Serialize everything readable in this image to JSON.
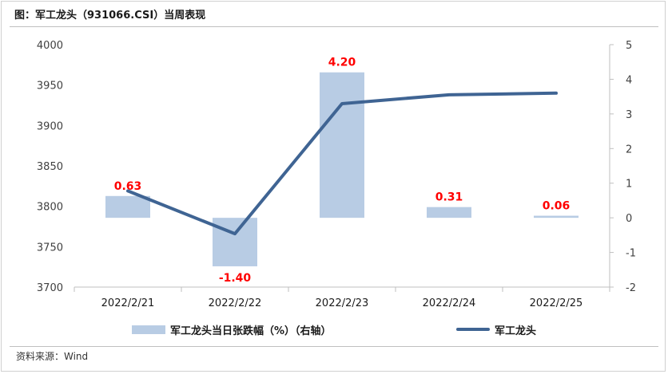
{
  "title": "图：军工龙头（931066.CSI）当周表现",
  "source": "资料来源：Wind",
  "colors": {
    "bar": "#b8cce4",
    "line": "#3f6493",
    "bar_label": "#ff0000",
    "axis_text": "#404040",
    "axis_line": "#bfbfbf"
  },
  "chart_data": {
    "type": "bar+line",
    "categories": [
      "2022/2/21",
      "2022/2/22",
      "2022/2/23",
      "2022/2/24",
      "2022/2/25"
    ],
    "left_axis": {
      "min": 3700,
      "max": 4000,
      "ticks": [
        "3700",
        "3750",
        "3800",
        "3850",
        "3900",
        "3950",
        "4000"
      ]
    },
    "right_axis": {
      "min": -2,
      "max": 5,
      "ticks": [
        "-2",
        "-1",
        "0",
        "1",
        "2",
        "3",
        "4",
        "5"
      ]
    },
    "series": [
      {
        "name": "军工龙头当日张跌幅（%）（右轴）",
        "type": "bar",
        "axis": "right",
        "values": [
          0.63,
          -1.4,
          4.2,
          0.31,
          0.06
        ],
        "labels": [
          "0.63",
          "-1.40",
          "4.20",
          "0.31",
          "0.06"
        ]
      },
      {
        "name": "军工龙头",
        "type": "line",
        "axis": "left",
        "values": [
          3819,
          3766,
          3927,
          3938,
          3940
        ]
      }
    ],
    "legend": "bottom",
    "grid": false
  },
  "legend": {
    "bar_label": "军工龙头当日张跌幅（%）（右轴）",
    "line_label": "军工龙头"
  }
}
